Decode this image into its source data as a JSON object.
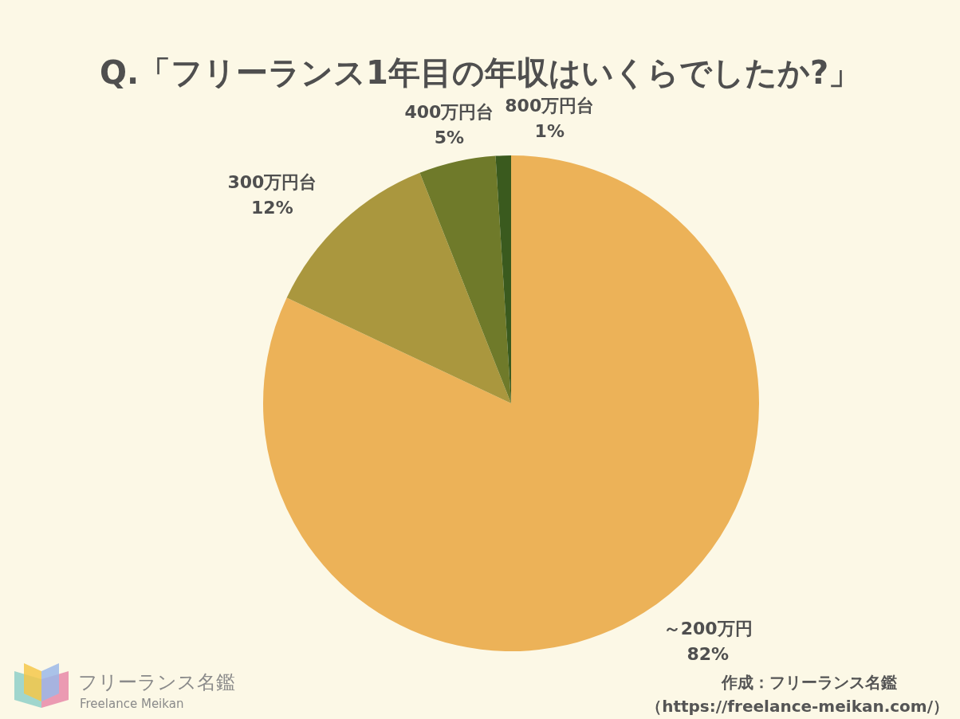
{
  "chart_data": {
    "type": "pie",
    "title": "Q.「フリーランス1年目の年収はいくらでしたか?」",
    "categories": [
      "～200万円",
      "300万円台",
      "400万円台",
      "800万円台"
    ],
    "values": [
      82,
      12,
      5,
      1
    ],
    "value_labels": [
      "82%",
      "12%",
      "5%",
      "1%"
    ],
    "colors": [
      "#ECB258",
      "#AA973E",
      "#6F7A2A",
      "#3A5A1E"
    ],
    "data_labels": true
  },
  "source": [
    "作成：フリーランス名鑑",
    "（https://freelance-meikan.com/）"
  ],
  "logo": [
    "フリーランス名鑑",
    "Freelance Meikan"
  ]
}
